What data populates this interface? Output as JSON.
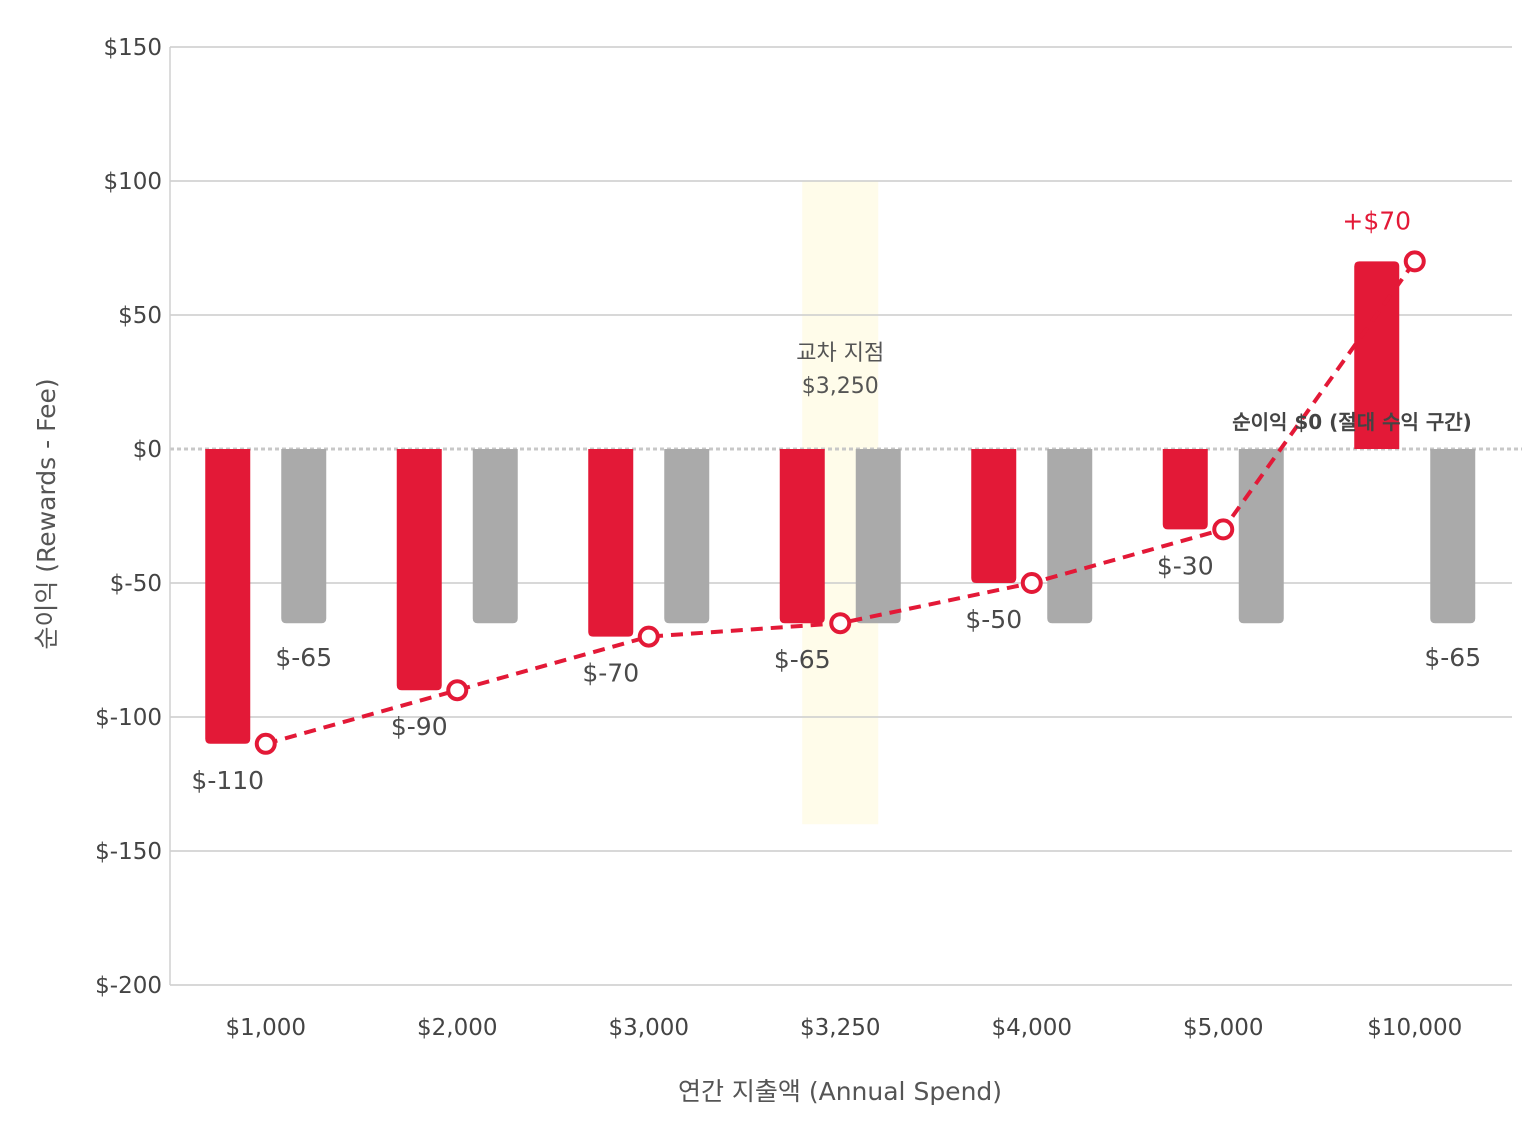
{
  "chart_data": {
    "type": "bar",
    "xlabel": "연간 지출액 (Annual Spend)",
    "ylabel": "순이익 (Rewards - Fee)",
    "ylim": [
      -200,
      150
    ],
    "yticks": [
      150,
      100,
      50,
      0,
      -50,
      -100,
      -150,
      -200
    ],
    "ytick_labels": [
      "$150",
      "$100",
      "$50",
      "$0",
      "$-50",
      "$-100",
      "$-150",
      "$-200"
    ],
    "categories": [
      "$1,000",
      "$2,000",
      "$3,000",
      "$3,250",
      "$4,000",
      "$5,000",
      "$10,000"
    ],
    "grid": true,
    "colors": {
      "net": "#e31937",
      "fee": "#aaaaaa",
      "highlight": "#fffbe6",
      "grid": "#cccccc"
    },
    "series": [
      {
        "kind": "bar",
        "values": [
          -110,
          -90,
          -70,
          -65,
          -50,
          -30,
          70
        ],
        "labels": [
          "$-110",
          "$-90",
          "$-70",
          "$-65",
          "$-50",
          "$-30",
          "+$70"
        ]
      },
      {
        "kind": "bar",
        "values": [
          -65,
          -65,
          -65,
          -65,
          -65,
          -65,
          -65
        ],
        "labels": [
          "$-65",
          "",
          "",
          "",
          "",
          "",
          "$-65"
        ]
      },
      {
        "kind": "line",
        "style": "dashed",
        "marker": "open-circle",
        "values": [
          -110,
          -90,
          -70,
          -65,
          -50,
          -30,
          70
        ]
      }
    ],
    "annotations": {
      "crossover": {
        "category": "$3,250",
        "line1": "교차 지점",
        "line2": "$3,250",
        "band_range": [
          -140,
          100
        ]
      },
      "zero_line": {
        "text": "순이익 $0 (절대 수익 구간)",
        "style": "dotted"
      }
    }
  }
}
